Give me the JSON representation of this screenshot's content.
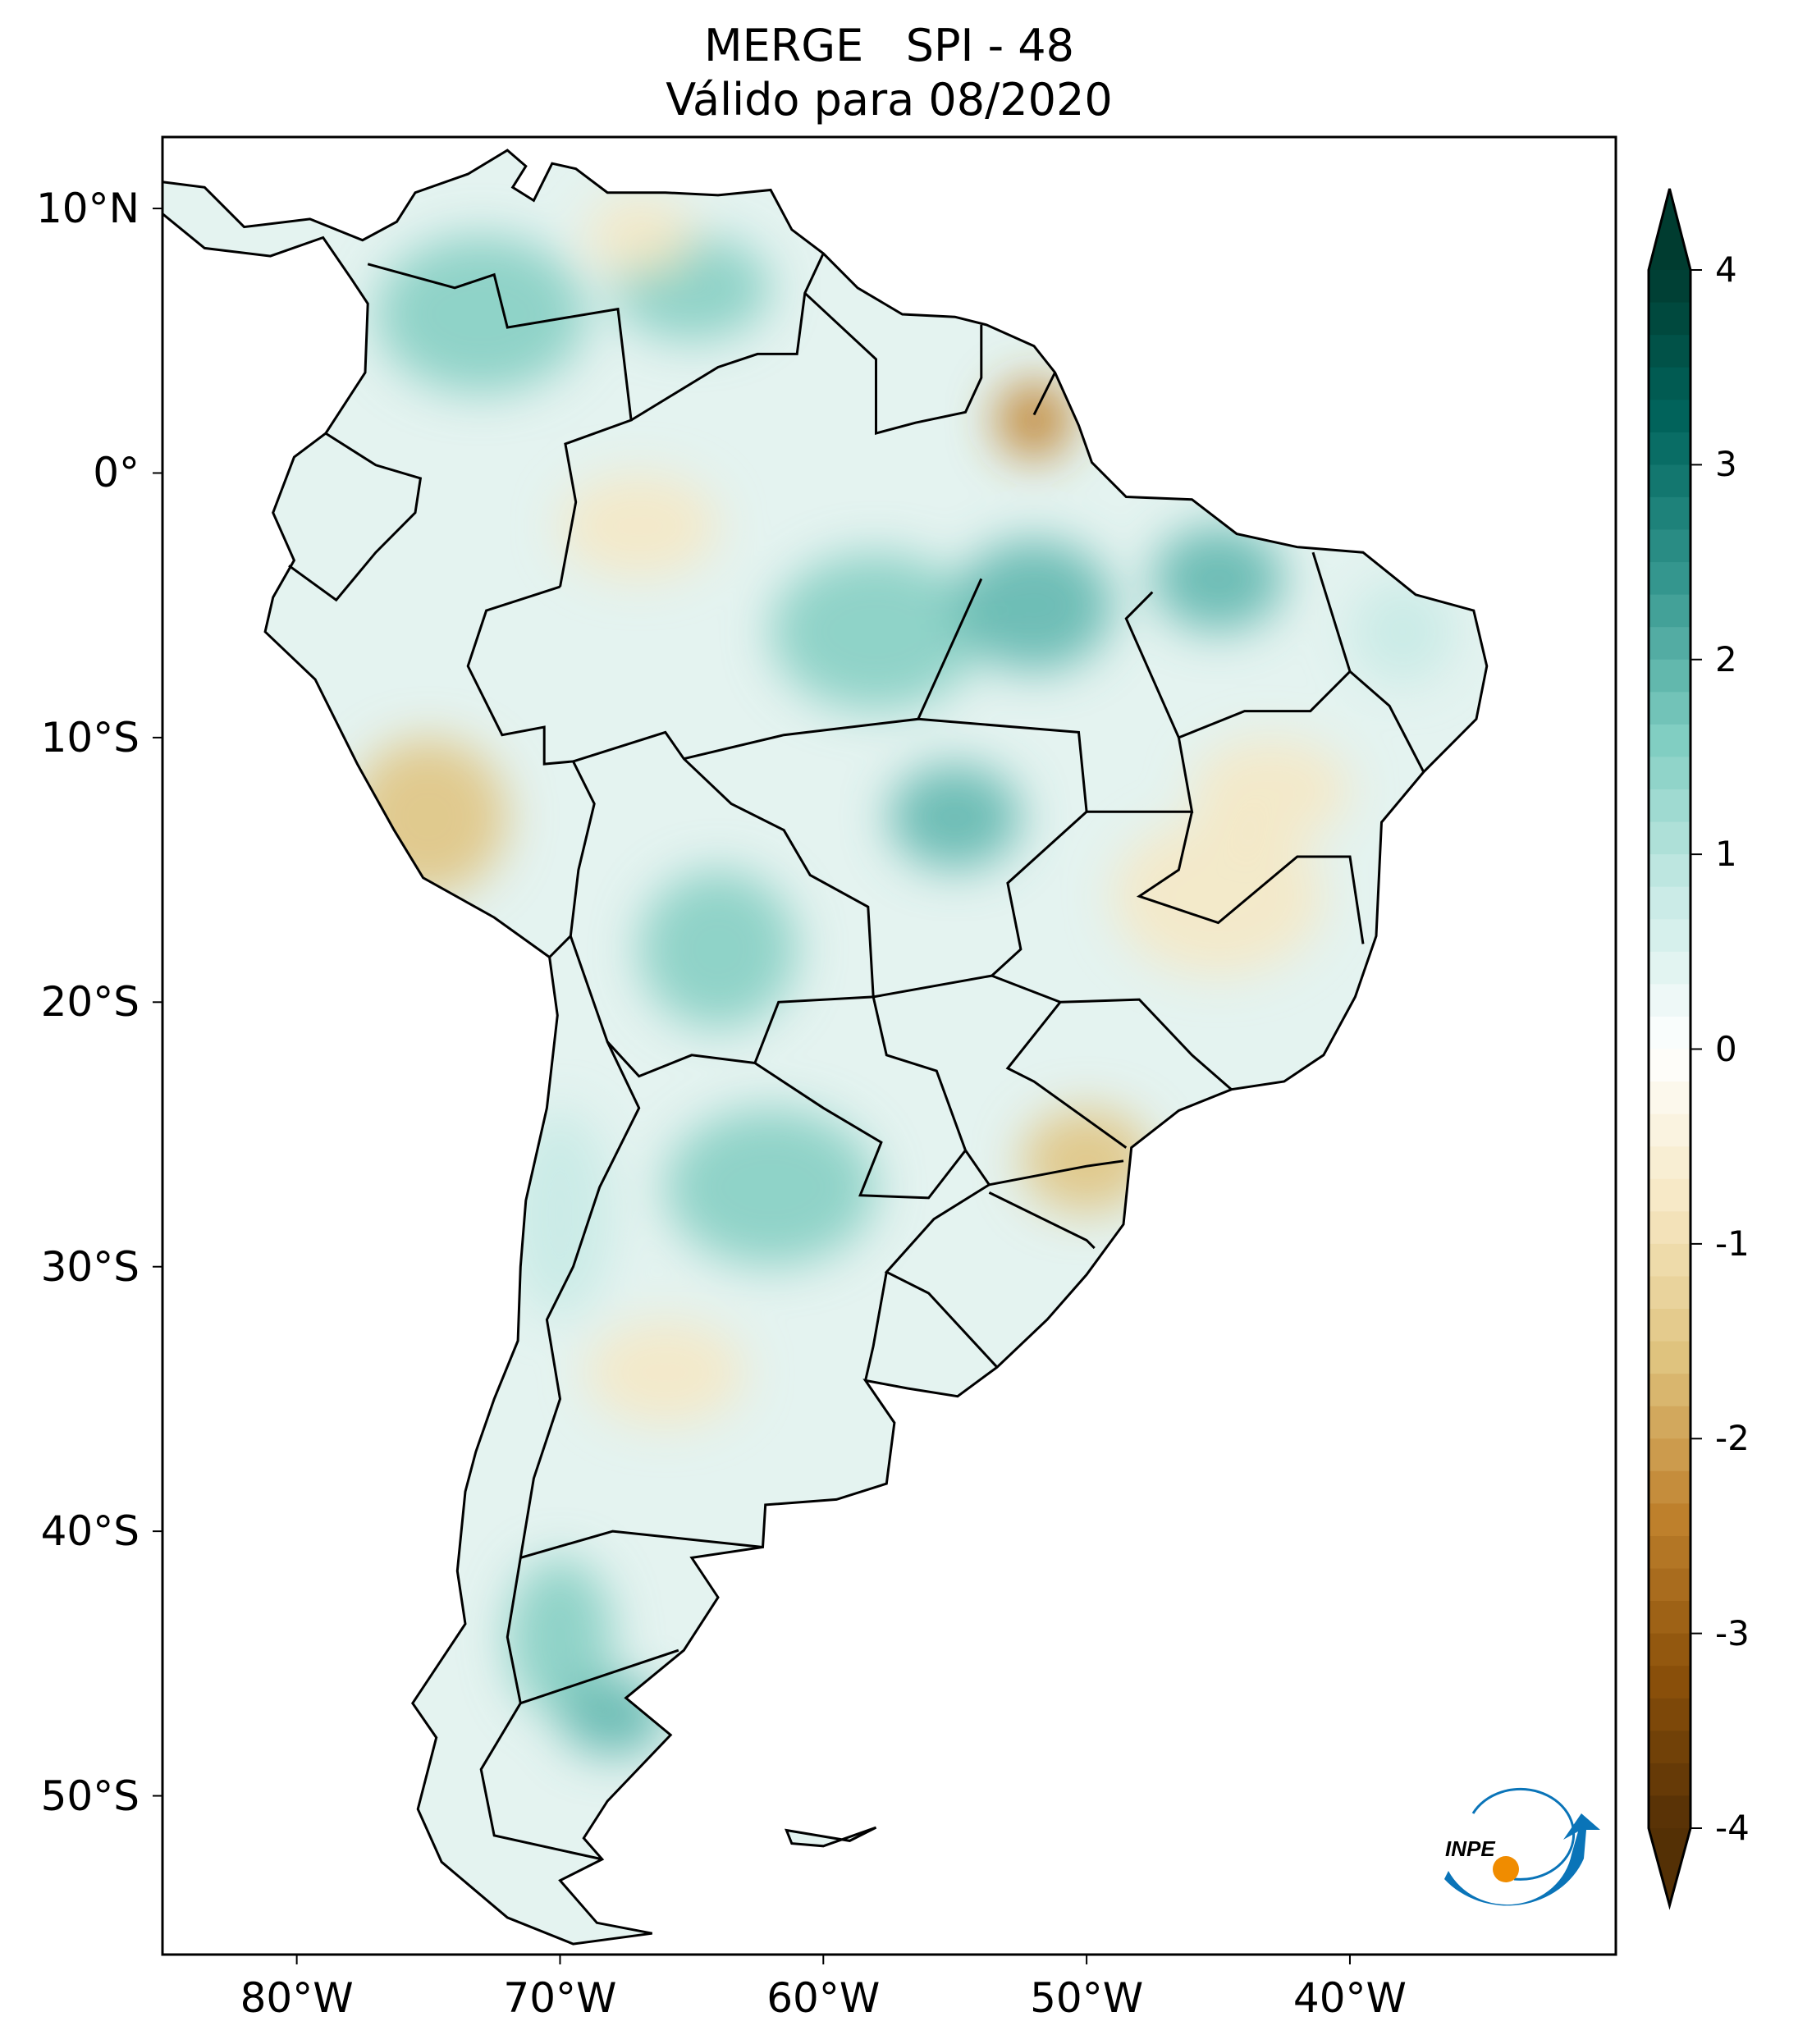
{
  "title": {
    "line1": "MERGE   SPI - 48",
    "line2": "Válido para 08/2020"
  },
  "map": {
    "projection": "PlateCarree",
    "lon_range": [
      -85.1,
      -29.9
    ],
    "lat_range": [
      -56,
      12.7
    ],
    "lat_ticks": [
      {
        "value": 10,
        "label": "10°N"
      },
      {
        "value": 0,
        "label": "0°"
      },
      {
        "value": -10,
        "label": "10°S"
      },
      {
        "value": -20,
        "label": "20°S"
      },
      {
        "value": -30,
        "label": "30°S"
      },
      {
        "value": -40,
        "label": "40°S"
      },
      {
        "value": -50,
        "label": "50°S"
      }
    ],
    "lon_ticks": [
      {
        "value": -80,
        "label": "80°W"
      },
      {
        "value": -70,
        "label": "70°W"
      },
      {
        "value": -60,
        "label": "60°W"
      },
      {
        "value": -50,
        "label": "50°W"
      },
      {
        "value": -40,
        "label": "40°W"
      }
    ]
  },
  "colorbar": {
    "colormap": "BrBG",
    "range": [
      -4,
      4
    ],
    "extend": "both",
    "ticks": [
      {
        "value": 4,
        "label": "4"
      },
      {
        "value": 3,
        "label": "3"
      },
      {
        "value": 2,
        "label": "2"
      },
      {
        "value": 1,
        "label": "1"
      },
      {
        "value": 0,
        "label": "0"
      },
      {
        "value": -1,
        "label": "-1"
      },
      {
        "value": -2,
        "label": "-2"
      },
      {
        "value": -3,
        "label": "-3"
      },
      {
        "value": -4,
        "label": "-4"
      }
    ],
    "colors": [
      "#543005",
      "#8c510a",
      "#bf812d",
      "#dfc27d",
      "#f6e8c3",
      "#ffffff",
      "#c7eae5",
      "#80cdc1",
      "#35978f",
      "#01665e",
      "#003c30"
    ]
  },
  "logo": {
    "text": "INPE",
    "colors": [
      "#0a74b8",
      "#f08c00"
    ]
  }
}
